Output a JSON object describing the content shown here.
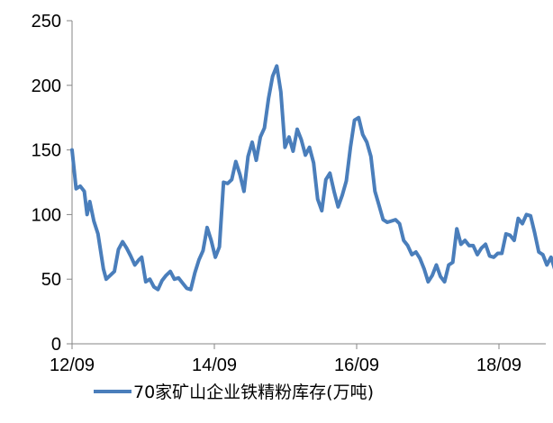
{
  "chart_data": {
    "type": "line",
    "title": "",
    "xlabel": "",
    "ylabel": "",
    "ylim": [
      0,
      250
    ],
    "yticks": [
      0,
      50,
      100,
      150,
      200,
      250
    ],
    "xticks": [
      "12/09",
      "14/09",
      "16/09",
      "18/09"
    ],
    "grid": false,
    "legend_position": "bottom",
    "series": [
      {
        "name": "70家矿山企业铁精粉库存(万吨)",
        "color": "#4a7ebb",
        "points": [
          [
            "2012-09-01",
            150
          ],
          [
            "2012-09-22",
            120
          ],
          [
            "2012-10-13",
            122
          ],
          [
            "2012-11-03",
            118
          ],
          [
            "2012-11-17",
            100
          ],
          [
            "2012-12-01",
            110
          ],
          [
            "2012-12-22",
            95
          ],
          [
            "2013-01-12",
            85
          ],
          [
            "2013-02-09",
            58
          ],
          [
            "2013-02-23",
            50
          ],
          [
            "2013-03-16",
            53
          ],
          [
            "2013-04-06",
            56
          ],
          [
            "2013-04-27",
            73
          ],
          [
            "2013-05-18",
            79
          ],
          [
            "2013-06-08",
            74
          ],
          [
            "2013-06-29",
            68
          ],
          [
            "2013-07-20",
            61
          ],
          [
            "2013-08-10",
            65
          ],
          [
            "2013-08-24",
            67
          ],
          [
            "2013-09-14",
            48
          ],
          [
            "2013-10-05",
            50
          ],
          [
            "2013-10-26",
            44
          ],
          [
            "2013-11-16",
            42
          ],
          [
            "2013-12-07",
            49
          ],
          [
            "2013-12-28",
            53
          ],
          [
            "2014-01-18",
            56
          ],
          [
            "2014-02-08",
            50
          ],
          [
            "2014-03-01",
            51
          ],
          [
            "2014-03-22",
            47
          ],
          [
            "2014-04-12",
            43
          ],
          [
            "2014-05-03",
            42
          ],
          [
            "2014-05-24",
            55
          ],
          [
            "2014-06-14",
            65
          ],
          [
            "2014-07-05",
            72
          ],
          [
            "2014-07-26",
            90
          ],
          [
            "2014-08-16",
            80
          ],
          [
            "2014-09-06",
            67
          ],
          [
            "2014-09-27",
            75
          ],
          [
            "2014-10-18",
            125
          ],
          [
            "2014-11-08",
            124
          ],
          [
            "2014-11-29",
            127
          ],
          [
            "2014-12-20",
            141
          ],
          [
            "2015-01-10",
            131
          ],
          [
            "2015-01-31",
            118
          ],
          [
            "2015-02-21",
            145
          ],
          [
            "2015-03-14",
            156
          ],
          [
            "2015-04-04",
            142
          ],
          [
            "2015-04-25",
            160
          ],
          [
            "2015-05-16",
            167
          ],
          [
            "2015-06-06",
            190
          ],
          [
            "2015-06-27",
            207
          ],
          [
            "2015-07-18",
            215
          ],
          [
            "2015-08-08",
            195
          ],
          [
            "2015-08-29",
            152
          ],
          [
            "2015-09-19",
            160
          ],
          [
            "2015-10-10",
            149
          ],
          [
            "2015-10-31",
            166
          ],
          [
            "2015-11-21",
            158
          ],
          [
            "2015-12-12",
            146
          ],
          [
            "2016-01-02",
            152
          ],
          [
            "2016-01-23",
            140
          ],
          [
            "2016-02-13",
            112
          ],
          [
            "2016-03-05",
            103
          ],
          [
            "2016-03-26",
            127
          ],
          [
            "2016-04-16",
            132
          ],
          [
            "2016-05-07",
            118
          ],
          [
            "2016-05-28",
            106
          ],
          [
            "2016-06-18",
            115
          ],
          [
            "2016-07-09",
            126
          ],
          [
            "2016-07-30",
            152
          ],
          [
            "2016-08-20",
            173
          ],
          [
            "2016-09-10",
            175
          ],
          [
            "2016-10-01",
            162
          ],
          [
            "2016-10-22",
            156
          ],
          [
            "2016-11-12",
            145
          ],
          [
            "2016-12-03",
            118
          ],
          [
            "2016-12-24",
            107
          ],
          [
            "2017-01-14",
            96
          ],
          [
            "2017-02-04",
            94
          ],
          [
            "2017-02-25",
            95
          ],
          [
            "2017-03-18",
            96
          ],
          [
            "2017-04-08",
            93
          ],
          [
            "2017-04-29",
            80
          ],
          [
            "2017-05-20",
            76
          ],
          [
            "2017-06-10",
            69
          ],
          [
            "2017-07-01",
            71
          ],
          [
            "2017-07-22",
            66
          ],
          [
            "2017-08-12",
            58
          ],
          [
            "2017-09-02",
            48
          ],
          [
            "2017-09-23",
            53
          ],
          [
            "2017-10-14",
            61
          ],
          [
            "2017-11-04",
            52
          ],
          [
            "2017-11-25",
            48
          ],
          [
            "2017-12-16",
            61
          ],
          [
            "2018-01-06",
            63
          ],
          [
            "2018-01-27",
            89
          ],
          [
            "2018-02-17",
            77
          ],
          [
            "2018-03-10",
            80
          ],
          [
            "2018-03-31",
            76
          ],
          [
            "2018-04-21",
            76
          ],
          [
            "2018-05-12",
            69
          ],
          [
            "2018-06-02",
            74
          ],
          [
            "2018-06-23",
            77
          ],
          [
            "2018-07-14",
            68
          ],
          [
            "2018-08-04",
            67
          ],
          [
            "2018-08-25",
            70
          ],
          [
            "2018-09-15",
            70
          ],
          [
            "2018-10-06",
            85
          ],
          [
            "2018-10-27",
            84
          ],
          [
            "2018-11-17",
            80
          ],
          [
            "2018-12-08",
            97
          ],
          [
            "2018-12-29",
            93
          ],
          [
            "2019-01-19",
            100
          ],
          [
            "2019-02-09",
            99
          ],
          [
            "2019-03-02",
            86
          ],
          [
            "2019-03-23",
            71
          ],
          [
            "2019-04-13",
            69
          ],
          [
            "2019-05-04",
            61
          ],
          [
            "2019-05-25",
            67
          ],
          [
            "2019-06-15",
            57
          ],
          [
            "2019-07-06",
            51
          ],
          [
            "2019-07-27",
            48
          ],
          [
            "2019-08-17",
            47
          ],
          [
            "2019-09-07",
            52
          ],
          [
            "2019-09-28",
            69
          ],
          [
            "2019-10-19",
            58
          ],
          [
            "2019-11-09",
            51
          ],
          [
            "2019-11-30",
            32
          ],
          [
            "2019-12-21",
            34
          ],
          [
            "2020-01-11",
            30
          ],
          [
            "2020-02-01",
            33
          ],
          [
            "2020-02-22",
            41
          ],
          [
            "2020-03-14",
            38
          ],
          [
            "2020-04-04",
            40
          ],
          [
            "2020-04-18",
            41
          ]
        ]
      }
    ]
  }
}
